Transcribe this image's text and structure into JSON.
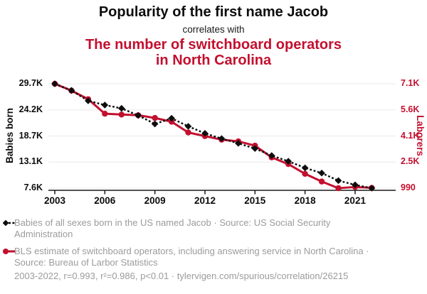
{
  "header": {
    "title": "Popularity of the first name Jacob",
    "connector": "correlates with",
    "red_title_line1": "The number of switchboard operators",
    "red_title_line2": "in North Carolina"
  },
  "colors": {
    "accent_red": "#c3102f",
    "series_black": "#0d0d0d",
    "legend_gray": "#9b9b9b",
    "gridline": "#e8e8e8",
    "axis": "#1a1a1a"
  },
  "chart_data": {
    "type": "line",
    "title": "Popularity of the first name Jacob correlates with The number of switchboard operators in North Carolina",
    "x": [
      2003,
      2004,
      2005,
      2006,
      2007,
      2008,
      2009,
      2010,
      2011,
      2012,
      2013,
      2014,
      2015,
      2016,
      2017,
      2018,
      2019,
      2020,
      2021,
      2022
    ],
    "series": [
      {
        "name": "Babies of all sexes born in the US named Jacob",
        "axis": "left",
        "marker": "diamond",
        "line_style": "dashed",
        "color": "#0d0d0d",
        "values": [
          29700,
          28300,
          26100,
          25200,
          24500,
          23000,
          21200,
          22400,
          20700,
          19200,
          18100,
          17100,
          16000,
          14500,
          13300,
          11900,
          10800,
          9200,
          8300,
          7600
        ]
      },
      {
        "name": "BLS estimate of switchboard operators, including answering service in North Carolina",
        "axis": "right",
        "marker": "circle",
        "line_style": "solid",
        "color": "#c3102f",
        "values": [
          7100,
          6700,
          6200,
          5350,
          5300,
          5260,
          5100,
          4880,
          4250,
          4040,
          3830,
          3730,
          3480,
          2790,
          2400,
          1830,
          1380,
          990,
          1060,
          1010
        ]
      }
    ],
    "left_axis": {
      "label": "Babies born",
      "ticks": [
        "29.7K",
        "24.2K",
        "18.7K",
        "13.1K",
        "7.6K"
      ],
      "range": [
        7600,
        29700
      ]
    },
    "right_axis": {
      "label": "Laborers",
      "ticks": [
        "7.1K",
        "5.6K",
        "4.1K",
        "2.5K",
        "990"
      ],
      "range": [
        990,
        7100
      ]
    },
    "x_axis": {
      "tick_labels": [
        "2003",
        "2006",
        "2009",
        "2012",
        "2015",
        "2018",
        "2021"
      ],
      "tick_years": [
        2003,
        2006,
        2009,
        2012,
        2015,
        2018,
        2021
      ]
    },
    "grid": true,
    "legend_position": "bottom"
  },
  "legend": {
    "items": [
      {
        "label": "Babies of all sexes born in the US named Jacob · Source: US Social Security Administration"
      },
      {
        "label": "BLS estimate of switchboard operators, including answering service in North Carolina · Source: Bureau of Larbor Statistics"
      }
    ],
    "footnote": "2003-2022, r=0.993, r²=0.986, p<0.01 · tylervigen.com/spurious/correlation/26215"
  }
}
